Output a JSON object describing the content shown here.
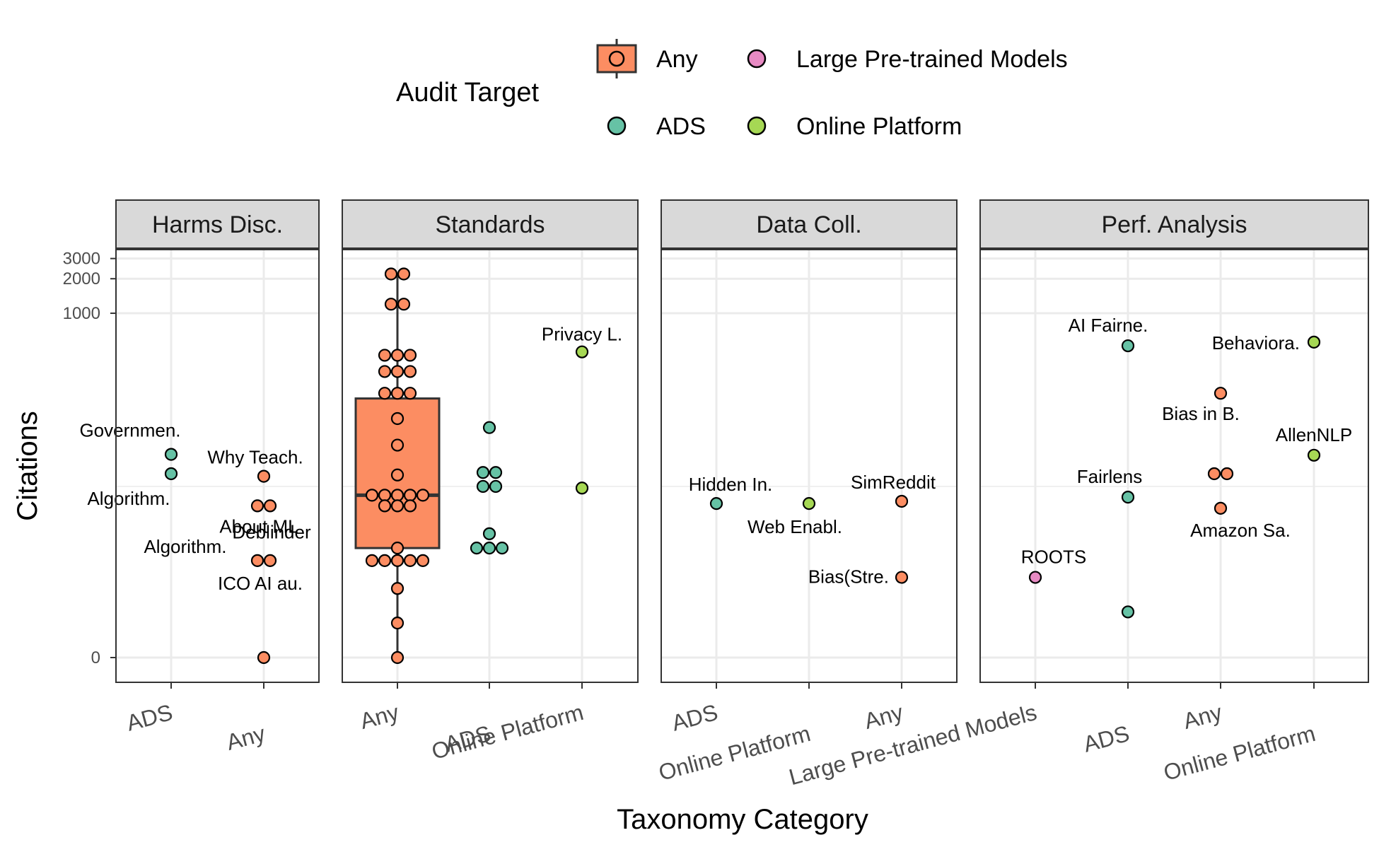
{
  "chart_data": {
    "type": "scatter",
    "xlabel": "Taxonomy Category",
    "ylabel": "Citations",
    "y_scale": "pseudo-log",
    "y_ticks": [
      0,
      1000,
      2000,
      3000
    ],
    "grid": true,
    "legend": {
      "title": "Audit Target",
      "placement": "top",
      "entries": [
        {
          "label": "Any",
          "color": "#FC8D62",
          "shape": "boxplot"
        },
        {
          "label": "ADS",
          "color": "#66C2A5",
          "shape": "point"
        },
        {
          "label": "Large Pre-trained Models",
          "color": "#E78AC3",
          "shape": "point"
        },
        {
          "label": "Online Platform",
          "color": "#A6D854",
          "shape": "point"
        }
      ]
    },
    "colors": {
      "Any": "#FC8D62",
      "ADS": "#66C2A5",
      "Large Pre-trained Models": "#E78AC3",
      "Online Platform": "#A6D854"
    },
    "panels": [
      {
        "title": "Harms Disc.",
        "categories": [
          "ADS",
          "Any"
        ],
        "points": [
          {
            "cat": "ADS",
            "target": "ADS",
            "value": 58,
            "label": "Governmen."
          },
          {
            "cat": "ADS",
            "target": "ADS",
            "value": 39,
            "label": "Algorithm."
          },
          {
            "cat": "Any",
            "target": "Any",
            "value": 37,
            "label": "Why Teach."
          },
          {
            "cat": "Any",
            "target": "Any",
            "value": 20,
            "label": "About ML"
          },
          {
            "cat": "Any",
            "target": "Any",
            "value": 20,
            "label": "Deblinder"
          },
          {
            "cat": "Any",
            "target": "Any",
            "value": 6,
            "label": "Algorithm."
          },
          {
            "cat": "Any",
            "target": "Any",
            "value": 6,
            "label": "ICO AI au."
          },
          {
            "cat": "Any",
            "target": "Any",
            "value": 0,
            "label": ""
          }
        ]
      },
      {
        "title": "Standards",
        "categories": [
          "Any",
          "ADS",
          "Online Platform"
        ],
        "boxplots": [
          {
            "cat": "Any",
            "min": 0,
            "q1": 8,
            "median": 25,
            "q3": 180,
            "max": 2200
          }
        ],
        "points": [
          {
            "cat": "Any",
            "target": "Any",
            "value": 2200,
            "label": ""
          },
          {
            "cat": "Any",
            "target": "Any",
            "value": 2200,
            "label": ""
          },
          {
            "cat": "Any",
            "target": "Any",
            "value": 1200,
            "label": ""
          },
          {
            "cat": "Any",
            "target": "Any",
            "value": 1200,
            "label": ""
          },
          {
            "cat": "Any",
            "target": "Any",
            "value": 430,
            "label": ""
          },
          {
            "cat": "Any",
            "target": "Any",
            "value": 430,
            "label": ""
          },
          {
            "cat": "Any",
            "target": "Any",
            "value": 430,
            "label": ""
          },
          {
            "cat": "Any",
            "target": "Any",
            "value": 310,
            "label": ""
          },
          {
            "cat": "Any",
            "target": "Any",
            "value": 310,
            "label": ""
          },
          {
            "cat": "Any",
            "target": "Any",
            "value": 310,
            "label": ""
          },
          {
            "cat": "Any",
            "target": "Any",
            "value": 200,
            "label": ""
          },
          {
            "cat": "Any",
            "target": "Any",
            "value": 200,
            "label": ""
          },
          {
            "cat": "Any",
            "target": "Any",
            "value": 200,
            "label": ""
          },
          {
            "cat": "Any",
            "target": "Any",
            "value": 120,
            "label": ""
          },
          {
            "cat": "Any",
            "target": "Any",
            "value": 70,
            "label": ""
          },
          {
            "cat": "Any",
            "target": "Any",
            "value": 38,
            "label": ""
          },
          {
            "cat": "Any",
            "target": "Any",
            "value": 25,
            "label": ""
          },
          {
            "cat": "Any",
            "target": "Any",
            "value": 25,
            "label": ""
          },
          {
            "cat": "Any",
            "target": "Any",
            "value": 25,
            "label": ""
          },
          {
            "cat": "Any",
            "target": "Any",
            "value": 25,
            "label": ""
          },
          {
            "cat": "Any",
            "target": "Any",
            "value": 25,
            "label": ""
          },
          {
            "cat": "Any",
            "target": "Any",
            "value": 20,
            "label": ""
          },
          {
            "cat": "Any",
            "target": "Any",
            "value": 20,
            "label": ""
          },
          {
            "cat": "Any",
            "target": "Any",
            "value": 20,
            "label": ""
          },
          {
            "cat": "Any",
            "target": "Any",
            "value": 8,
            "label": ""
          },
          {
            "cat": "Any",
            "target": "Any",
            "value": 6,
            "label": ""
          },
          {
            "cat": "Any",
            "target": "Any",
            "value": 6,
            "label": ""
          },
          {
            "cat": "Any",
            "target": "Any",
            "value": 6,
            "label": ""
          },
          {
            "cat": "Any",
            "target": "Any",
            "value": 6,
            "label": ""
          },
          {
            "cat": "Any",
            "target": "Any",
            "value": 6,
            "label": ""
          },
          {
            "cat": "Any",
            "target": "Any",
            "value": 3,
            "label": ""
          },
          {
            "cat": "Any",
            "target": "Any",
            "value": 1,
            "label": ""
          },
          {
            "cat": "Any",
            "target": "Any",
            "value": 0,
            "label": ""
          },
          {
            "cat": "ADS",
            "target": "ADS",
            "value": 100,
            "label": ""
          },
          {
            "cat": "ADS",
            "target": "ADS",
            "value": 40,
            "label": ""
          },
          {
            "cat": "ADS",
            "target": "ADS",
            "value": 40,
            "label": ""
          },
          {
            "cat": "ADS",
            "target": "ADS",
            "value": 30,
            "label": ""
          },
          {
            "cat": "ADS",
            "target": "ADS",
            "value": 30,
            "label": ""
          },
          {
            "cat": "ADS",
            "target": "ADS",
            "value": 11,
            "label": ""
          },
          {
            "cat": "ADS",
            "target": "ADS",
            "value": 8,
            "label": ""
          },
          {
            "cat": "ADS",
            "target": "ADS",
            "value": 8,
            "label": ""
          },
          {
            "cat": "ADS",
            "target": "ADS",
            "value": 8,
            "label": ""
          },
          {
            "cat": "Online Platform",
            "target": "Online Platform",
            "value": 460,
            "label": "Privacy L."
          },
          {
            "cat": "Online Platform",
            "target": "Online Platform",
            "value": 29,
            "label": ""
          }
        ]
      },
      {
        "title": "Data Coll.",
        "categories": [
          "ADS",
          "Online Platform",
          "Any"
        ],
        "points": [
          {
            "cat": "ADS",
            "target": "ADS",
            "value": 21,
            "label": "Hidden In."
          },
          {
            "cat": "Online Platform",
            "target": "Online Platform",
            "value": 21,
            "label": "Web Enabl."
          },
          {
            "cat": "Any",
            "target": "Any",
            "value": 22,
            "label": "SimReddit"
          },
          {
            "cat": "Any",
            "target": "Any",
            "value": 4,
            "label": "Bias(Stre."
          }
        ]
      },
      {
        "title": "Perf. Analysis",
        "categories": [
          "Large Pre-trained Models",
          "ADS",
          "Any",
          "Online Platform"
        ],
        "points": [
          {
            "cat": "Large Pre-trained Models",
            "target": "Large Pre-trained Models",
            "value": 4,
            "label": "ROOTS"
          },
          {
            "cat": "ADS",
            "target": "ADS",
            "value": 520,
            "label": "AI Fairne."
          },
          {
            "cat": "ADS",
            "target": "ADS",
            "value": 24,
            "label": "Fairlens"
          },
          {
            "cat": "ADS",
            "target": "ADS",
            "value": 1.5,
            "label": ""
          },
          {
            "cat": "Any",
            "target": "Any",
            "value": 200,
            "label": "Bias in B."
          },
          {
            "cat": "Any",
            "target": "Any",
            "value": 39,
            "label": ""
          },
          {
            "cat": "Any",
            "target": "Any",
            "value": 39,
            "label": ""
          },
          {
            "cat": "Any",
            "target": "Any",
            "value": 19,
            "label": "Amazon Sa."
          },
          {
            "cat": "Online Platform",
            "target": "Online Platform",
            "value": 560,
            "label": "Behaviora."
          },
          {
            "cat": "Online Platform",
            "target": "Online Platform",
            "value": 57,
            "label": "AllenNLP"
          }
        ]
      }
    ]
  }
}
